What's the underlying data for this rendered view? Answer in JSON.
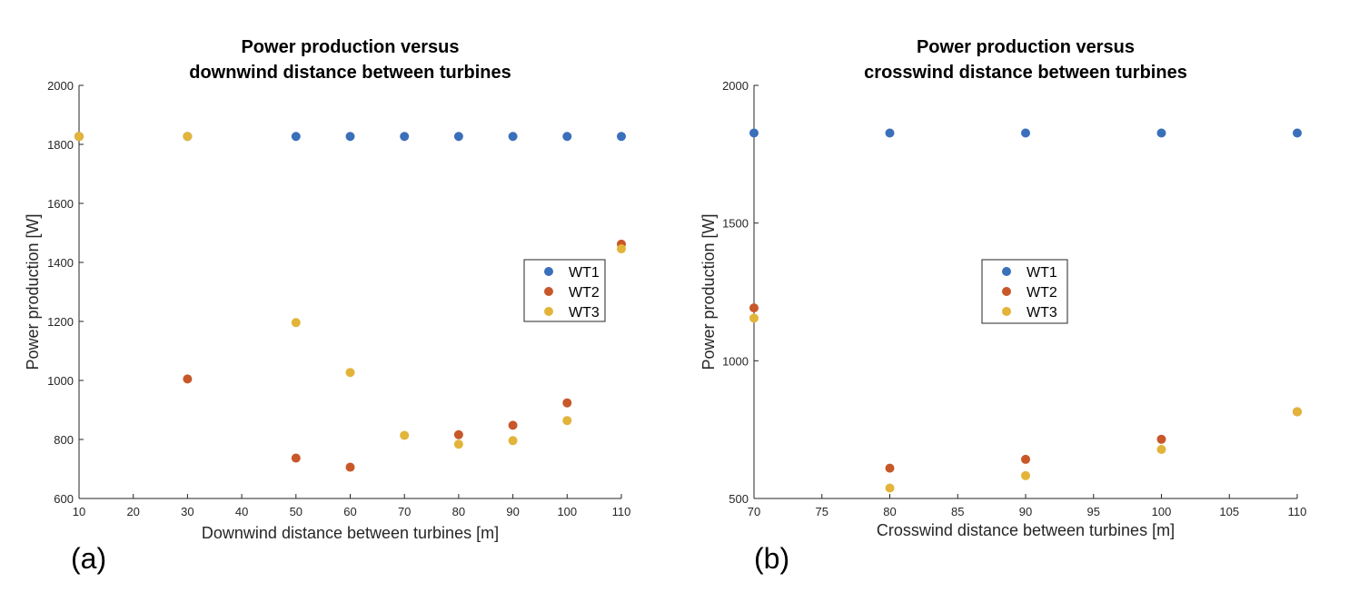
{
  "chart_data": [
    {
      "type": "scatter",
      "panel_label": "(a)",
      "title": [
        "Power production versus",
        "downwind distance between turbines"
      ],
      "xlabel": "Downwind distance between turbines  [m]",
      "ylabel": "Power production [W]",
      "xlim": [
        10,
        110
      ],
      "ylim": [
        600,
        2000
      ],
      "xticks": [
        10,
        20,
        30,
        40,
        50,
        60,
        70,
        80,
        90,
        100,
        110
      ],
      "yticks": [
        600,
        800,
        1000,
        1200,
        1400,
        1600,
        1800,
        2000
      ],
      "grid": false,
      "legend_position": "right",
      "series": [
        {
          "name": "WT1",
          "color": "#3a6fba",
          "points": [
            [
              10,
              1827
            ],
            [
              30,
              1827
            ],
            [
              50,
              1827
            ],
            [
              60,
              1827
            ],
            [
              70,
              1827
            ],
            [
              80,
              1827
            ],
            [
              90,
              1827
            ],
            [
              100,
              1827
            ],
            [
              110,
              1827
            ]
          ]
        },
        {
          "name": "WT2",
          "color": "#c8572a",
          "points": [
            [
              10,
              1827
            ],
            [
              30,
              1005
            ],
            [
              50,
              737
            ],
            [
              60,
              706
            ],
            [
              80,
              816
            ],
            [
              90,
              848
            ],
            [
              100,
              924
            ],
            [
              110,
              1462
            ]
          ]
        },
        {
          "name": "WT3",
          "color": "#e3b43a",
          "points": [
            [
              10,
              1827
            ],
            [
              30,
              1827
            ],
            [
              50,
              1196
            ],
            [
              60,
              1027
            ],
            [
              70,
              814
            ],
            [
              80,
              784
            ],
            [
              90,
              796
            ],
            [
              100,
              864
            ],
            [
              110,
              1446
            ]
          ]
        }
      ]
    },
    {
      "type": "scatter",
      "panel_label": "(b)",
      "title": [
        "Power production versus",
        "crosswind distance between turbines"
      ],
      "xlabel": "Crosswind distance between turbines [m]",
      "ylabel": "Power production [W]",
      "xlim": [
        70,
        110
      ],
      "ylim": [
        500,
        2000
      ],
      "xticks": [
        70,
        75,
        80,
        85,
        90,
        95,
        100,
        105,
        110
      ],
      "yticks": [
        500,
        1000,
        1500,
        2000
      ],
      "grid": false,
      "legend_position": "center",
      "series": [
        {
          "name": "WT1",
          "color": "#3a6fba",
          "points": [
            [
              70,
              1827
            ],
            [
              80,
              1827
            ],
            [
              90,
              1827
            ],
            [
              100,
              1827
            ],
            [
              110,
              1827
            ]
          ]
        },
        {
          "name": "WT2",
          "color": "#c8572a",
          "points": [
            [
              70,
              1192
            ],
            [
              80,
              610
            ],
            [
              90,
              642
            ],
            [
              100,
              715
            ],
            [
              110,
              815
            ]
          ]
        },
        {
          "name": "WT3",
          "color": "#e3b43a",
          "points": [
            [
              70,
              1155
            ],
            [
              80,
              538
            ],
            [
              90,
              583
            ],
            [
              100,
              678
            ],
            [
              110,
              815
            ]
          ]
        }
      ]
    }
  ]
}
